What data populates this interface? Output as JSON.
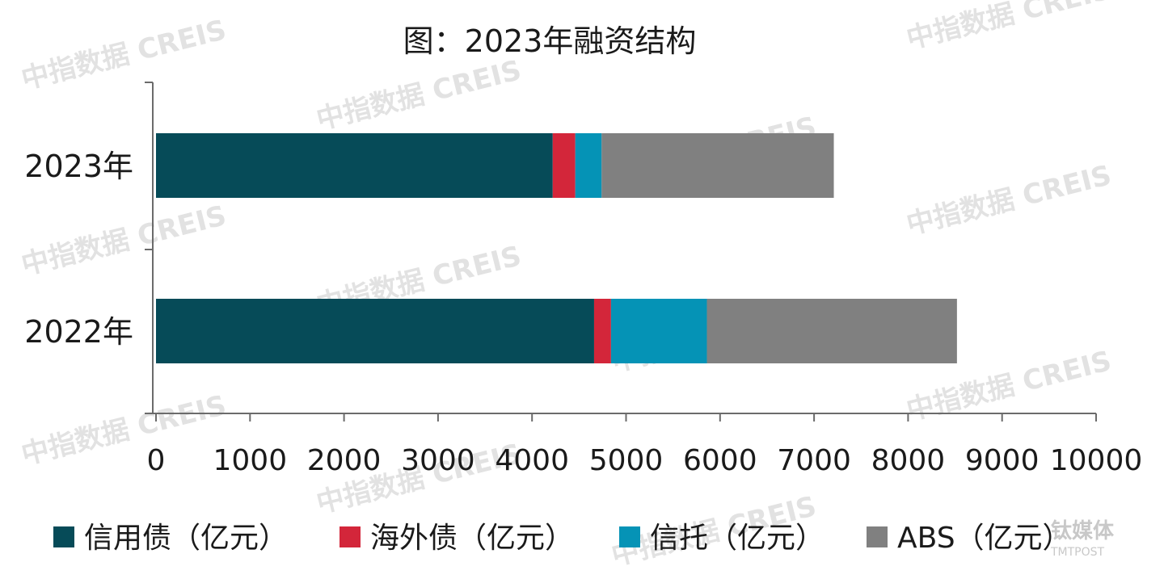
{
  "chart_data": {
    "type": "bar",
    "orientation": "horizontal",
    "stacked": true,
    "title": "图：2023年融资结构",
    "categories": [
      "2023年",
      "2022年"
    ],
    "series": [
      {
        "name": "信用债（亿元）",
        "color": "#064b58",
        "values": [
          4220,
          4660
        ]
      },
      {
        "name": "海外债（亿元）",
        "color": "#d3263a",
        "values": [
          240,
          180
        ]
      },
      {
        "name": "信托（亿元）",
        "color": "#0593b6",
        "values": [
          280,
          1020
        ]
      },
      {
        "name": "ABS（亿元）",
        "color": "#808080",
        "values": [
          2470,
          2660
        ]
      }
    ],
    "xlim": [
      0,
      10000
    ],
    "xticks": [
      0,
      1000,
      2000,
      3000,
      4000,
      5000,
      6000,
      7000,
      8000,
      9000,
      10000
    ],
    "grid": false,
    "legend": "bottom"
  },
  "watermark": {
    "text": "中指数据 CREIS",
    "corner_text": "钛媒体",
    "corner_sub": "TMTPOST"
  }
}
